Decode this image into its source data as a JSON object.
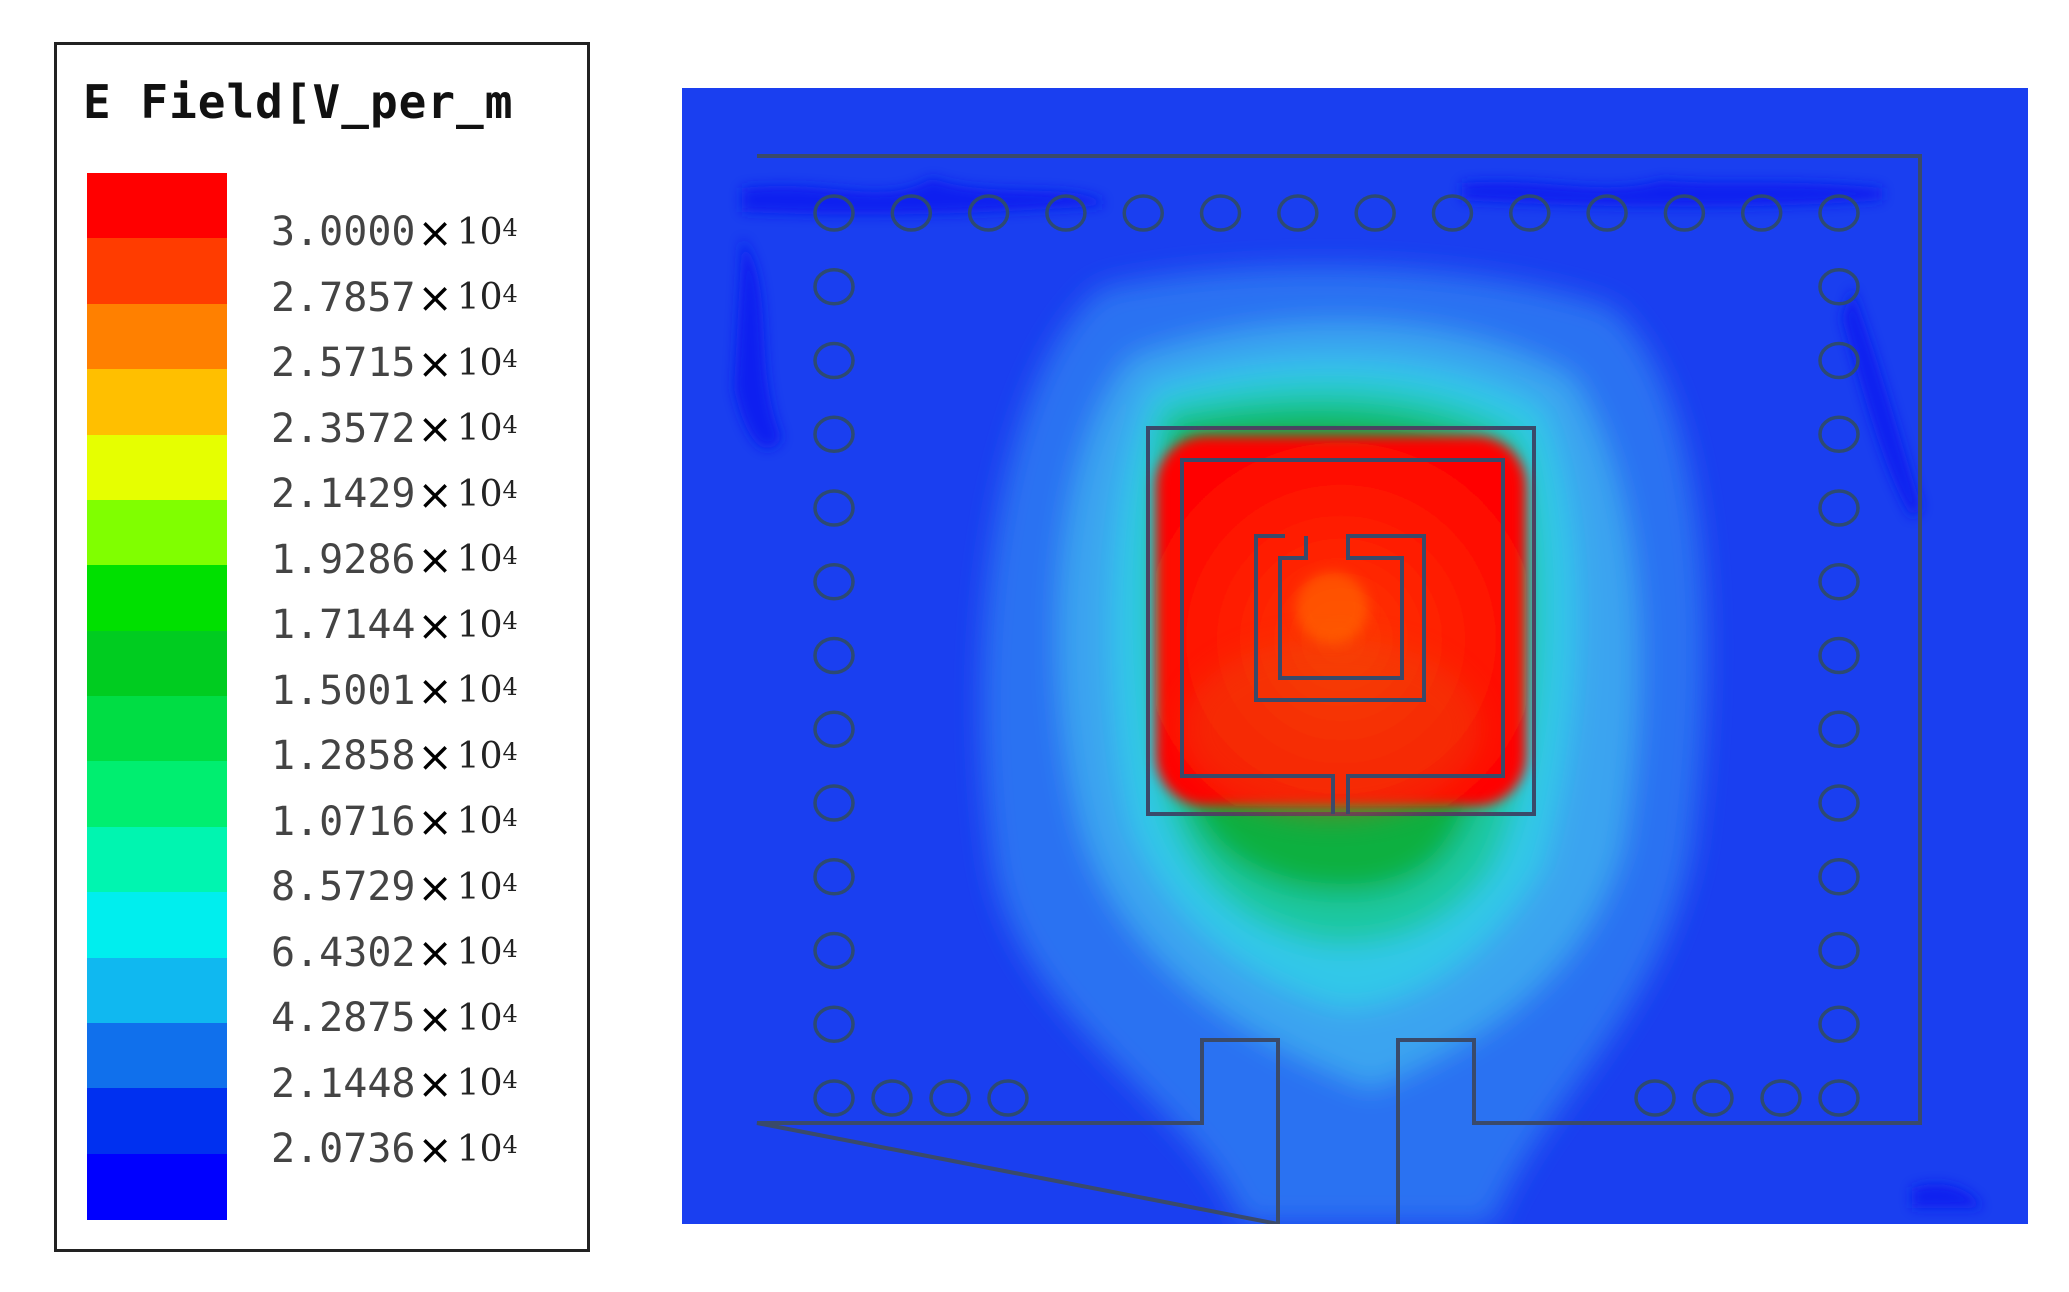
{
  "legend": {
    "title": "E Field[V_per_m",
    "multiplier": "×",
    "base": "10",
    "exponent": "4",
    "ticks": [
      "3.0000",
      "2.7857",
      "2.5715",
      "2.3572",
      "2.1429",
      "1.9286",
      "1.7144",
      "1.5001",
      "1.2858",
      "1.0716",
      "8.5729",
      "6.4302",
      "4.2875",
      "2.1448",
      "2.0736"
    ],
    "colors": [
      "#ff0000",
      "#ff3c00",
      "#ff8000",
      "#ffbf00",
      "#e6ff00",
      "#80ff00",
      "#00e000",
      "#00cc20",
      "#00dd44",
      "#00ee70",
      "#00f5b0",
      "#00eeee",
      "#10b8f0",
      "#1070ec",
      "#0030f0",
      "#0000ff"
    ]
  },
  "plot": {
    "background_color": "#1a3ff0",
    "outline_color": "#3a4a6a"
  }
}
